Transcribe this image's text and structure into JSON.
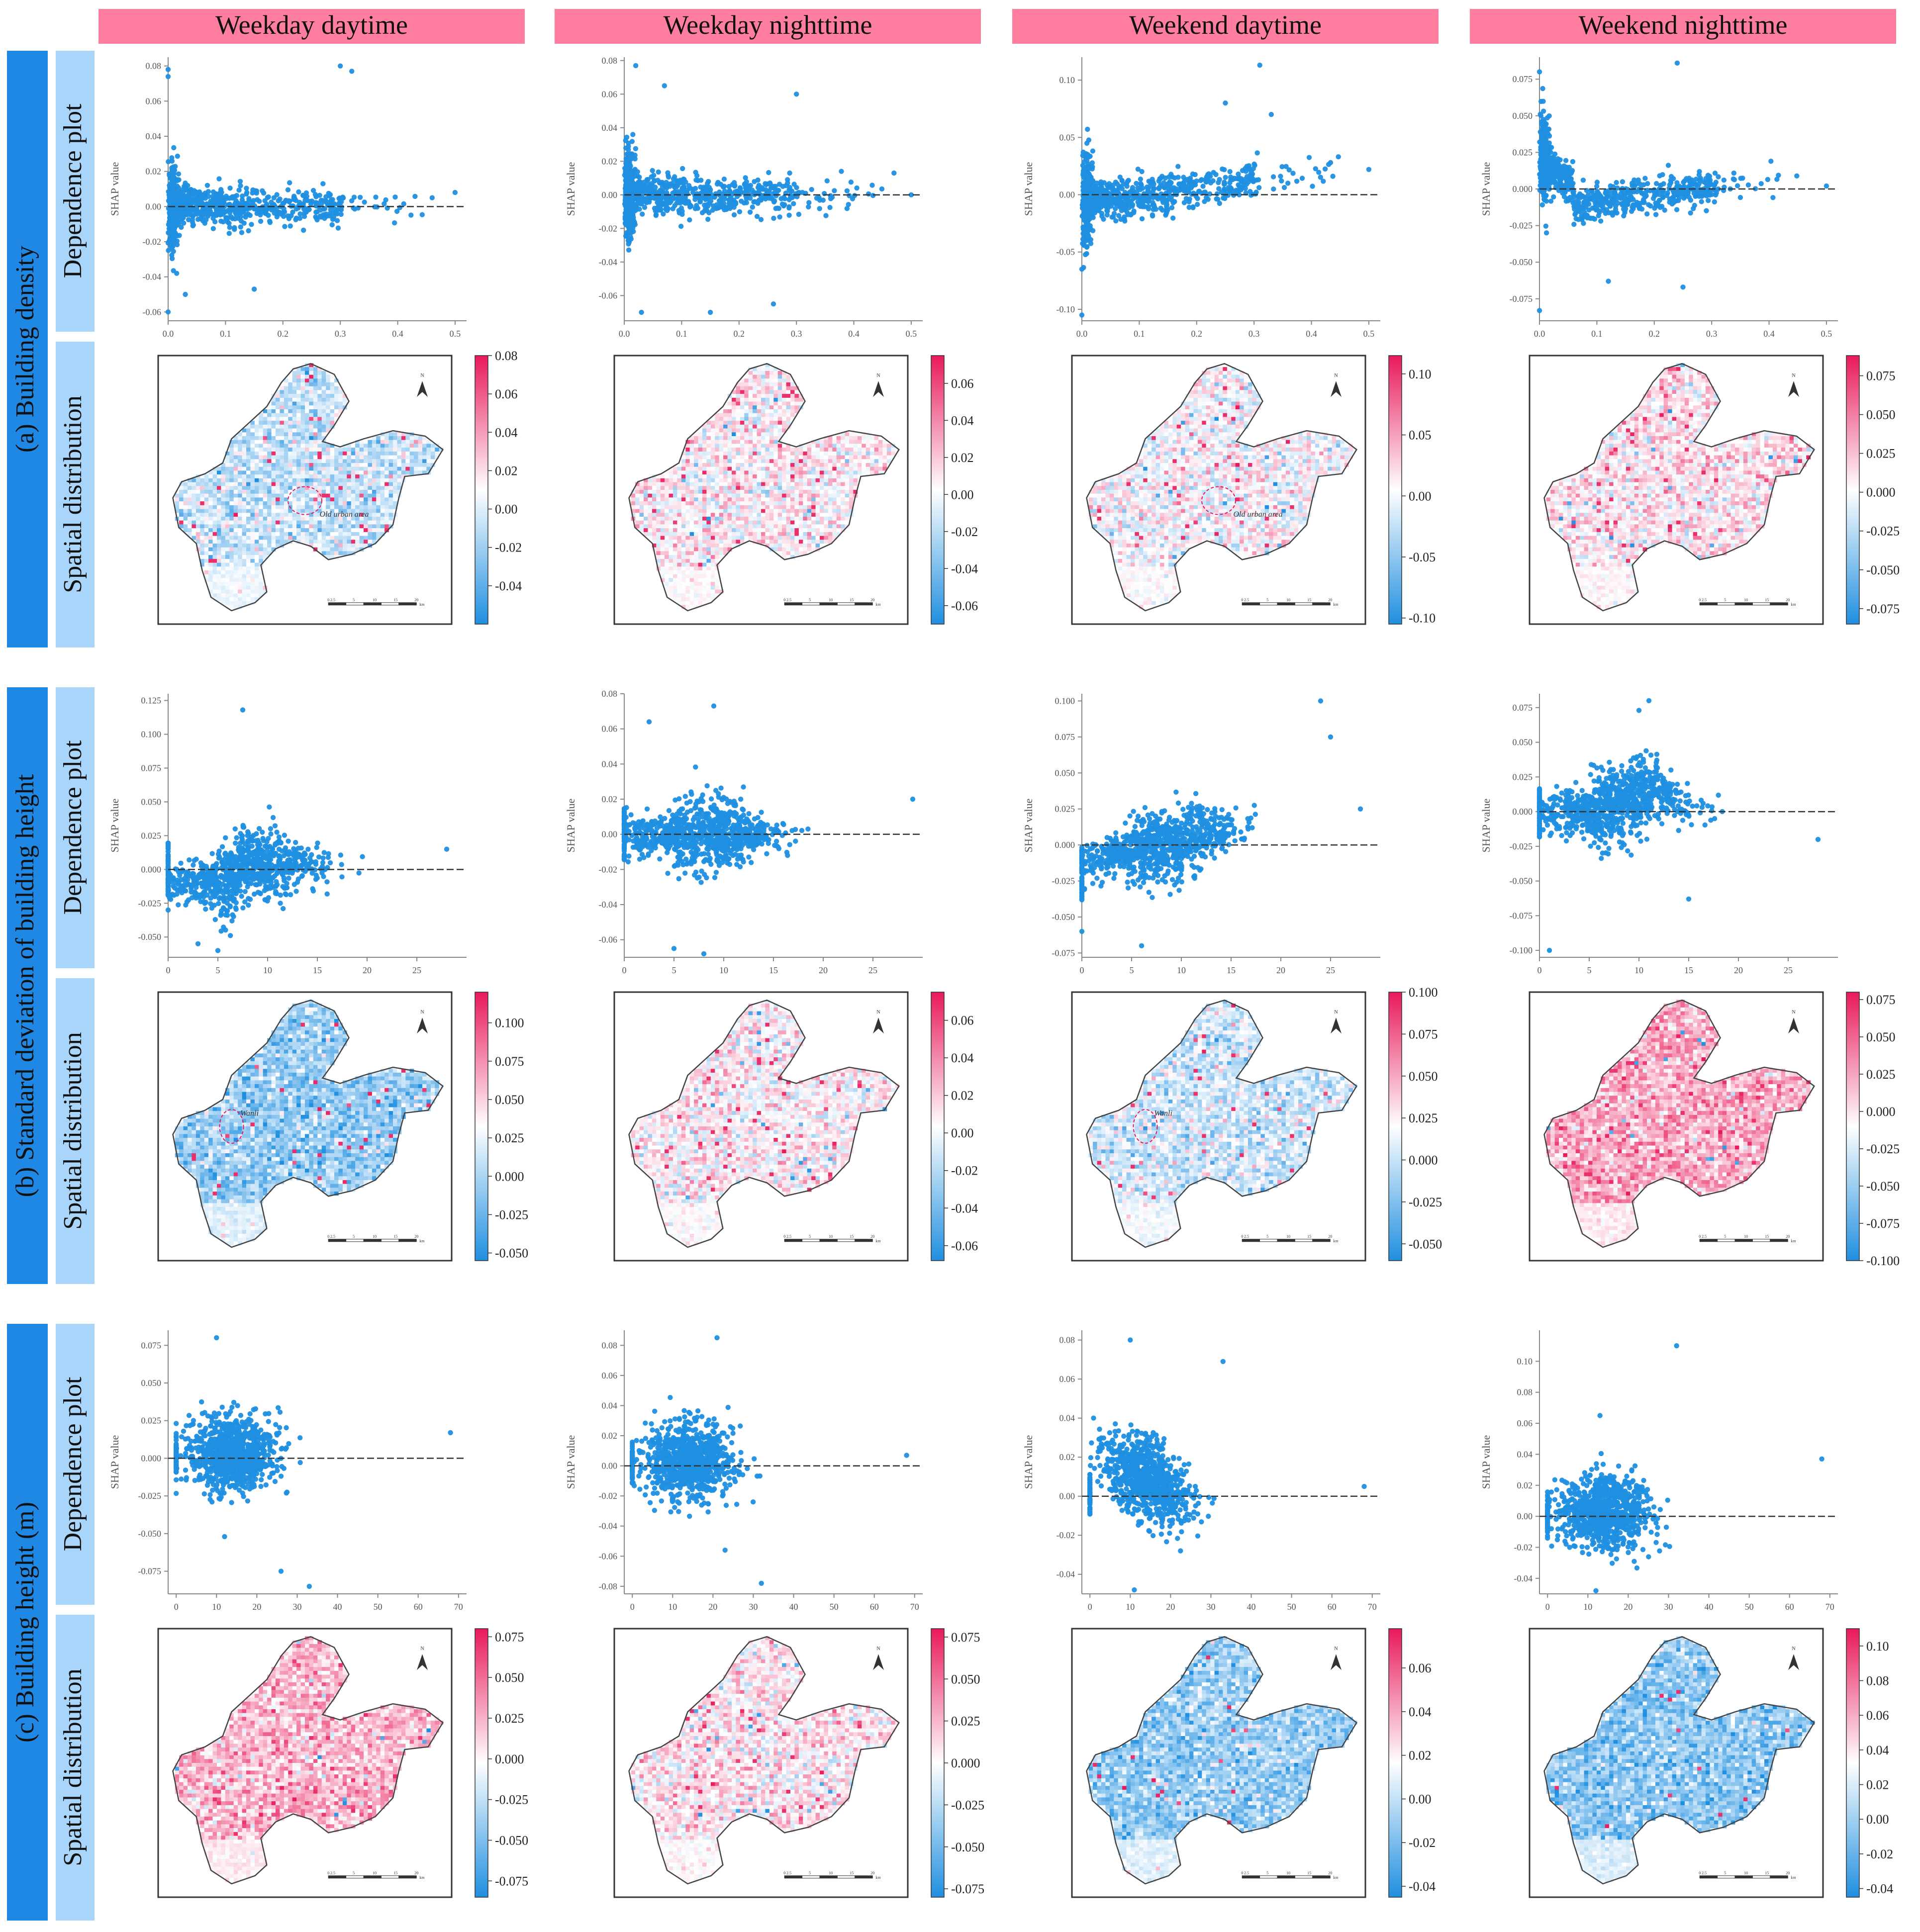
{
  "columns": [
    "Weekday daytime",
    "Weekday nighttime",
    "Weekend daytime",
    "Weekend nighttime"
  ],
  "colors": {
    "header_fill": "#ff7ea0",
    "row_label_dark": "#1f88e5",
    "row_label_light": "#a9d5fa",
    "point": "#1f8fe0",
    "cmap_low": "#1f8fe0",
    "cmap_mid": "#ffffff",
    "cmap_high": "#e8195a"
  },
  "rows": [
    {
      "label": "(a) Building density",
      "dep_label": "Dependence plot",
      "map_label": "Spatial distribution"
    },
    {
      "label": "(b) Standard deviation of building height",
      "dep_label": "Dependence plot",
      "map_label": "Spatial distribution"
    },
    {
      "label": "(c) Building height (m)",
      "dep_label": "Dependence plot",
      "map_label": "Spatial distribution"
    }
  ],
  "map_annotations": {
    "old_urban_area": "Old urban area",
    "wanli": "Wanli",
    "north": "N",
    "scale_unit": "km",
    "scale_ticks": [
      "0",
      "2.5",
      "5",
      "10",
      "15",
      "20"
    ]
  },
  "chart_data": [
    {
      "type": "scatter",
      "row": 0,
      "col": 0,
      "ylabel": "SHAP value",
      "xlim": [
        0,
        0.52
      ],
      "ylim": [
        -0.065,
        0.085
      ],
      "xticks": [
        "0.0",
        "0.1",
        "0.2",
        "0.3",
        "0.4",
        "0.5"
      ],
      "yticks": [
        "-0.06",
        "-0.04",
        "-0.02",
        "0.00",
        "0.02",
        "0.04",
        "0.06",
        "0.08"
      ],
      "pattern": "density",
      "seed": 11,
      "extremes": [
        [
          0.0,
          0.078
        ],
        [
          0.0,
          0.074
        ],
        [
          0.3,
          0.08
        ],
        [
          0.32,
          0.077
        ],
        [
          0.0,
          -0.06
        ],
        [
          0.03,
          -0.05
        ],
        [
          0.15,
          -0.047
        ],
        [
          0.5,
          0.008
        ],
        [
          0.46,
          0.005
        ]
      ],
      "colorbar": {
        "vmin": -0.06,
        "vmax": 0.08,
        "ticks": [
          "-0.04",
          "-0.02",
          "0.00",
          "0.02",
          "0.04",
          "0.06",
          "0.08"
        ]
      }
    },
    {
      "type": "scatter",
      "row": 0,
      "col": 1,
      "ylabel": "SHAP value",
      "xlim": [
        0,
        0.52
      ],
      "ylim": [
        -0.075,
        0.082
      ],
      "xticks": [
        "0.0",
        "0.1",
        "0.2",
        "0.3",
        "0.4",
        "0.5"
      ],
      "yticks": [
        "-0.06",
        "-0.04",
        "-0.02",
        "0.00",
        "0.02",
        "0.04",
        "0.06",
        "0.08"
      ],
      "pattern": "density",
      "seed": 23,
      "extremes": [
        [
          0.02,
          0.077
        ],
        [
          0.07,
          0.065
        ],
        [
          0.15,
          -0.07
        ],
        [
          0.26,
          -0.065
        ],
        [
          0.03,
          -0.07
        ],
        [
          0.3,
          0.06
        ],
        [
          0.47,
          0.013
        ],
        [
          0.5,
          0.0
        ]
      ],
      "colorbar": {
        "vmin": -0.07,
        "vmax": 0.075,
        "ticks": [
          "-0.06",
          "-0.04",
          "-0.02",
          "0.00",
          "0.02",
          "0.04",
          "0.06"
        ]
      }
    },
    {
      "type": "scatter",
      "row": 0,
      "col": 2,
      "ylabel": "SHAP value",
      "xlim": [
        0,
        0.52
      ],
      "ylim": [
        -0.11,
        0.12
      ],
      "xticks": [
        "0.0",
        "0.1",
        "0.2",
        "0.3",
        "0.4",
        "0.5"
      ],
      "yticks": [
        "-0.10",
        "-0.05",
        "0.00",
        "0.05",
        "0.10"
      ],
      "pattern": "density_rise",
      "seed": 37,
      "extremes": [
        [
          0.0,
          -0.105
        ],
        [
          0.0,
          -0.065
        ],
        [
          0.31,
          0.113
        ],
        [
          0.33,
          0.07
        ],
        [
          0.25,
          0.08
        ],
        [
          0.5,
          0.022
        ]
      ],
      "colorbar": {
        "vmin": -0.105,
        "vmax": 0.115,
        "ticks": [
          "-0.10",
          "-0.05",
          "0.00",
          "0.05",
          "0.10"
        ]
      }
    },
    {
      "type": "scatter",
      "row": 0,
      "col": 3,
      "ylabel": "SHAP value",
      "xlim": [
        0,
        0.52
      ],
      "ylim": [
        -0.09,
        0.09
      ],
      "xticks": [
        "0.0",
        "0.1",
        "0.2",
        "0.3",
        "0.4",
        "0.5"
      ],
      "yticks": [
        "-0.075",
        "-0.050",
        "-0.025",
        "0.000",
        "0.025",
        "0.050",
        "0.075"
      ],
      "pattern": "density_drop",
      "seed": 41,
      "extremes": [
        [
          0.0,
          -0.083
        ],
        [
          0.0,
          0.08
        ],
        [
          0.24,
          0.086
        ],
        [
          0.25,
          -0.067
        ],
        [
          0.12,
          -0.063
        ],
        [
          0.5,
          0.002
        ]
      ],
      "colorbar": {
        "vmin": -0.085,
        "vmax": 0.088,
        "ticks": [
          "-0.075",
          "-0.050",
          "-0.025",
          "0.000",
          "0.025",
          "0.050",
          "0.075"
        ]
      }
    },
    {
      "type": "scatter",
      "row": 1,
      "col": 0,
      "ylabel": "SHAP value",
      "xlim": [
        0,
        30
      ],
      "ylim": [
        -0.065,
        0.13
      ],
      "xticks": [
        "0",
        "5",
        "10",
        "15",
        "20",
        "25"
      ],
      "yticks": [
        "-0.050",
        "-0.025",
        "0.000",
        "0.025",
        "0.050",
        "0.075",
        "0.100",
        "0.125"
      ],
      "pattern": "stdheight",
      "seed": 53,
      "extremes": [
        [
          7.5,
          0.118
        ],
        [
          0,
          -0.03
        ],
        [
          3,
          -0.055
        ],
        [
          5,
          -0.06
        ],
        [
          28,
          0.015
        ]
      ],
      "colorbar": {
        "vmin": -0.055,
        "vmax": 0.12,
        "ticks": [
          "-0.050",
          "-0.025",
          "0.000",
          "0.025",
          "0.050",
          "0.075",
          "0.100"
        ]
      }
    },
    {
      "type": "scatter",
      "row": 1,
      "col": 1,
      "ylabel": "SHAP value",
      "xlim": [
        0,
        30
      ],
      "ylim": [
        -0.07,
        0.08
      ],
      "xticks": [
        "0",
        "5",
        "10",
        "15",
        "20",
        "25"
      ],
      "yticks": [
        "-0.06",
        "-0.04",
        "-0.02",
        "0.00",
        "0.02",
        "0.04",
        "0.06",
        "0.08"
      ],
      "pattern": "stdheight_mid",
      "seed": 61,
      "extremes": [
        [
          9,
          0.073
        ],
        [
          2.5,
          0.064
        ],
        [
          5,
          -0.065
        ],
        [
          8,
          -0.068
        ],
        [
          29,
          0.02
        ]
      ],
      "colorbar": {
        "vmin": -0.068,
        "vmax": 0.075,
        "ticks": [
          "-0.06",
          "-0.04",
          "-0.02",
          "0.00",
          "0.02",
          "0.04",
          "0.06"
        ]
      }
    },
    {
      "type": "scatter",
      "row": 1,
      "col": 2,
      "ylabel": "SHAP value",
      "xlim": [
        0,
        30
      ],
      "ylim": [
        -0.078,
        0.105
      ],
      "xticks": [
        "0",
        "5",
        "10",
        "15",
        "20",
        "25"
      ],
      "yticks": [
        "-0.075",
        "-0.050",
        "-0.025",
        "0.000",
        "0.025",
        "0.050",
        "0.075",
        "0.100"
      ],
      "pattern": "stdheight_rise",
      "seed": 71,
      "extremes": [
        [
          24,
          0.1
        ],
        [
          25,
          0.075
        ],
        [
          0,
          -0.06
        ],
        [
          6,
          -0.07
        ],
        [
          28,
          0.025
        ]
      ],
      "colorbar": {
        "vmin": -0.06,
        "vmax": 0.1,
        "ticks": [
          "-0.050",
          "-0.025",
          "0.000",
          "0.025",
          "0.050",
          "0.075",
          "0.100"
        ]
      }
    },
    {
      "type": "scatter",
      "row": 1,
      "col": 3,
      "ylabel": "SHAP value",
      "xlim": [
        0,
        30
      ],
      "ylim": [
        -0.105,
        0.085
      ],
      "xticks": [
        "0",
        "5",
        "10",
        "15",
        "20",
        "25"
      ],
      "yticks": [
        "-0.100",
        "-0.075",
        "-0.050",
        "-0.025",
        "0.000",
        "0.025",
        "0.050",
        "0.075"
      ],
      "pattern": "stdheight_hump",
      "seed": 83,
      "extremes": [
        [
          1,
          -0.1
        ],
        [
          11,
          0.08
        ],
        [
          10,
          0.073
        ],
        [
          15,
          -0.063
        ],
        [
          28,
          -0.02
        ]
      ],
      "colorbar": {
        "vmin": -0.1,
        "vmax": 0.08,
        "ticks": [
          "-0.100",
          "-0.075",
          "-0.050",
          "-0.025",
          "0.000",
          "0.025",
          "0.050",
          "0.075"
        ]
      }
    },
    {
      "type": "scatter",
      "row": 2,
      "col": 0,
      "ylabel": "SHAP value",
      "xlim": [
        -2,
        72
      ],
      "ylim": [
        -0.09,
        0.085
      ],
      "xticks": [
        "0",
        "10",
        "20",
        "30",
        "40",
        "50",
        "60",
        "70"
      ],
      "yticks": [
        "-0.075",
        "-0.050",
        "-0.025",
        "0.000",
        "0.025",
        "0.050",
        "0.075"
      ],
      "pattern": "height",
      "seed": 97,
      "extremes": [
        [
          10,
          0.08
        ],
        [
          26,
          -0.075
        ],
        [
          33,
          -0.085
        ],
        [
          68,
          0.017
        ],
        [
          12,
          -0.052
        ]
      ],
      "colorbar": {
        "vmin": -0.085,
        "vmax": 0.08,
        "ticks": [
          "-0.075",
          "-0.050",
          "-0.025",
          "0.000",
          "0.025",
          "0.050",
          "0.075"
        ]
      }
    },
    {
      "type": "scatter",
      "row": 2,
      "col": 1,
      "ylabel": "SHAP value",
      "xlim": [
        -2,
        72
      ],
      "ylim": [
        -0.085,
        0.09
      ],
      "xticks": [
        "0",
        "10",
        "20",
        "30",
        "40",
        "50",
        "60",
        "70"
      ],
      "yticks": [
        "-0.08",
        "-0.06",
        "-0.04",
        "-0.02",
        "0.00",
        "0.02",
        "0.04",
        "0.06",
        "0.08"
      ],
      "pattern": "height",
      "seed": 103,
      "extremes": [
        [
          21,
          0.085
        ],
        [
          32,
          -0.078
        ],
        [
          23,
          -0.056
        ],
        [
          68,
          0.007
        ]
      ],
      "colorbar": {
        "vmin": -0.08,
        "vmax": 0.08,
        "ticks": [
          "-0.075",
          "-0.050",
          "-0.025",
          "0.000",
          "0.025",
          "0.050",
          "0.075"
        ]
      }
    },
    {
      "type": "scatter",
      "row": 2,
      "col": 2,
      "ylabel": "SHAP value",
      "xlim": [
        -2,
        72
      ],
      "ylim": [
        -0.05,
        0.085
      ],
      "xticks": [
        "0",
        "10",
        "20",
        "30",
        "40",
        "50",
        "60",
        "70"
      ],
      "yticks": [
        "-0.04",
        "-0.02",
        "0.00",
        "0.02",
        "0.04",
        "0.06",
        "0.08"
      ],
      "pattern": "height_decline",
      "seed": 109,
      "extremes": [
        [
          10,
          0.08
        ],
        [
          33,
          0.069
        ],
        [
          11,
          -0.048
        ],
        [
          68,
          0.005
        ]
      ],
      "colorbar": {
        "vmin": -0.045,
        "vmax": 0.078,
        "ticks": [
          "-0.04",
          "-0.02",
          "0.00",
          "0.02",
          "0.04",
          "0.06"
        ]
      }
    },
    {
      "type": "scatter",
      "row": 2,
      "col": 3,
      "ylabel": "SHAP value",
      "xlim": [
        -2,
        72
      ],
      "ylim": [
        -0.05,
        0.12
      ],
      "xticks": [
        "0",
        "10",
        "20",
        "30",
        "40",
        "50",
        "60",
        "70"
      ],
      "yticks": [
        "-0.04",
        "-0.02",
        "0.00",
        "0.02",
        "0.04",
        "0.06",
        "0.08",
        "0.10"
      ],
      "pattern": "height",
      "seed": 113,
      "extremes": [
        [
          32,
          0.11
        ],
        [
          13,
          0.065
        ],
        [
          68,
          0.037
        ],
        [
          12,
          -0.048
        ]
      ],
      "colorbar": {
        "vmin": -0.045,
        "vmax": 0.11,
        "ticks": [
          "-0.04",
          "-0.02",
          "0.00",
          "0.02",
          "0.04",
          "0.06",
          "0.08",
          "0.10"
        ]
      }
    }
  ],
  "maps": [
    {
      "row": 0,
      "col": 0,
      "bias": -0.25,
      "hot": 0.5,
      "annot": "old_urban_area"
    },
    {
      "row": 0,
      "col": 1,
      "bias": 0.05,
      "hot": 0.5,
      "annot": ""
    },
    {
      "row": 0,
      "col": 2,
      "bias": 0.0,
      "hot": 0.4,
      "annot": "old_urban_area"
    },
    {
      "row": 0,
      "col": 3,
      "bias": 0.1,
      "hot": 0.3,
      "annot": ""
    },
    {
      "row": 1,
      "col": 0,
      "bias": -0.45,
      "hot": 0.2,
      "annot": "wanli"
    },
    {
      "row": 1,
      "col": 1,
      "bias": 0.05,
      "hot": 0.5,
      "annot": ""
    },
    {
      "row": 1,
      "col": 2,
      "bias": -0.2,
      "hot": 0.3,
      "annot": "wanli"
    },
    {
      "row": 1,
      "col": 3,
      "bias": 0.35,
      "hot": 0.3,
      "annot": ""
    },
    {
      "row": 2,
      "col": 0,
      "bias": 0.3,
      "hot": 0.2,
      "annot": ""
    },
    {
      "row": 2,
      "col": 1,
      "bias": 0.1,
      "hot": 0.25,
      "annot": ""
    },
    {
      "row": 2,
      "col": 2,
      "bias": -0.45,
      "hot": 0.15,
      "annot": ""
    },
    {
      "row": 2,
      "col": 3,
      "bias": -0.5,
      "hot": 0.1,
      "annot": ""
    }
  ]
}
